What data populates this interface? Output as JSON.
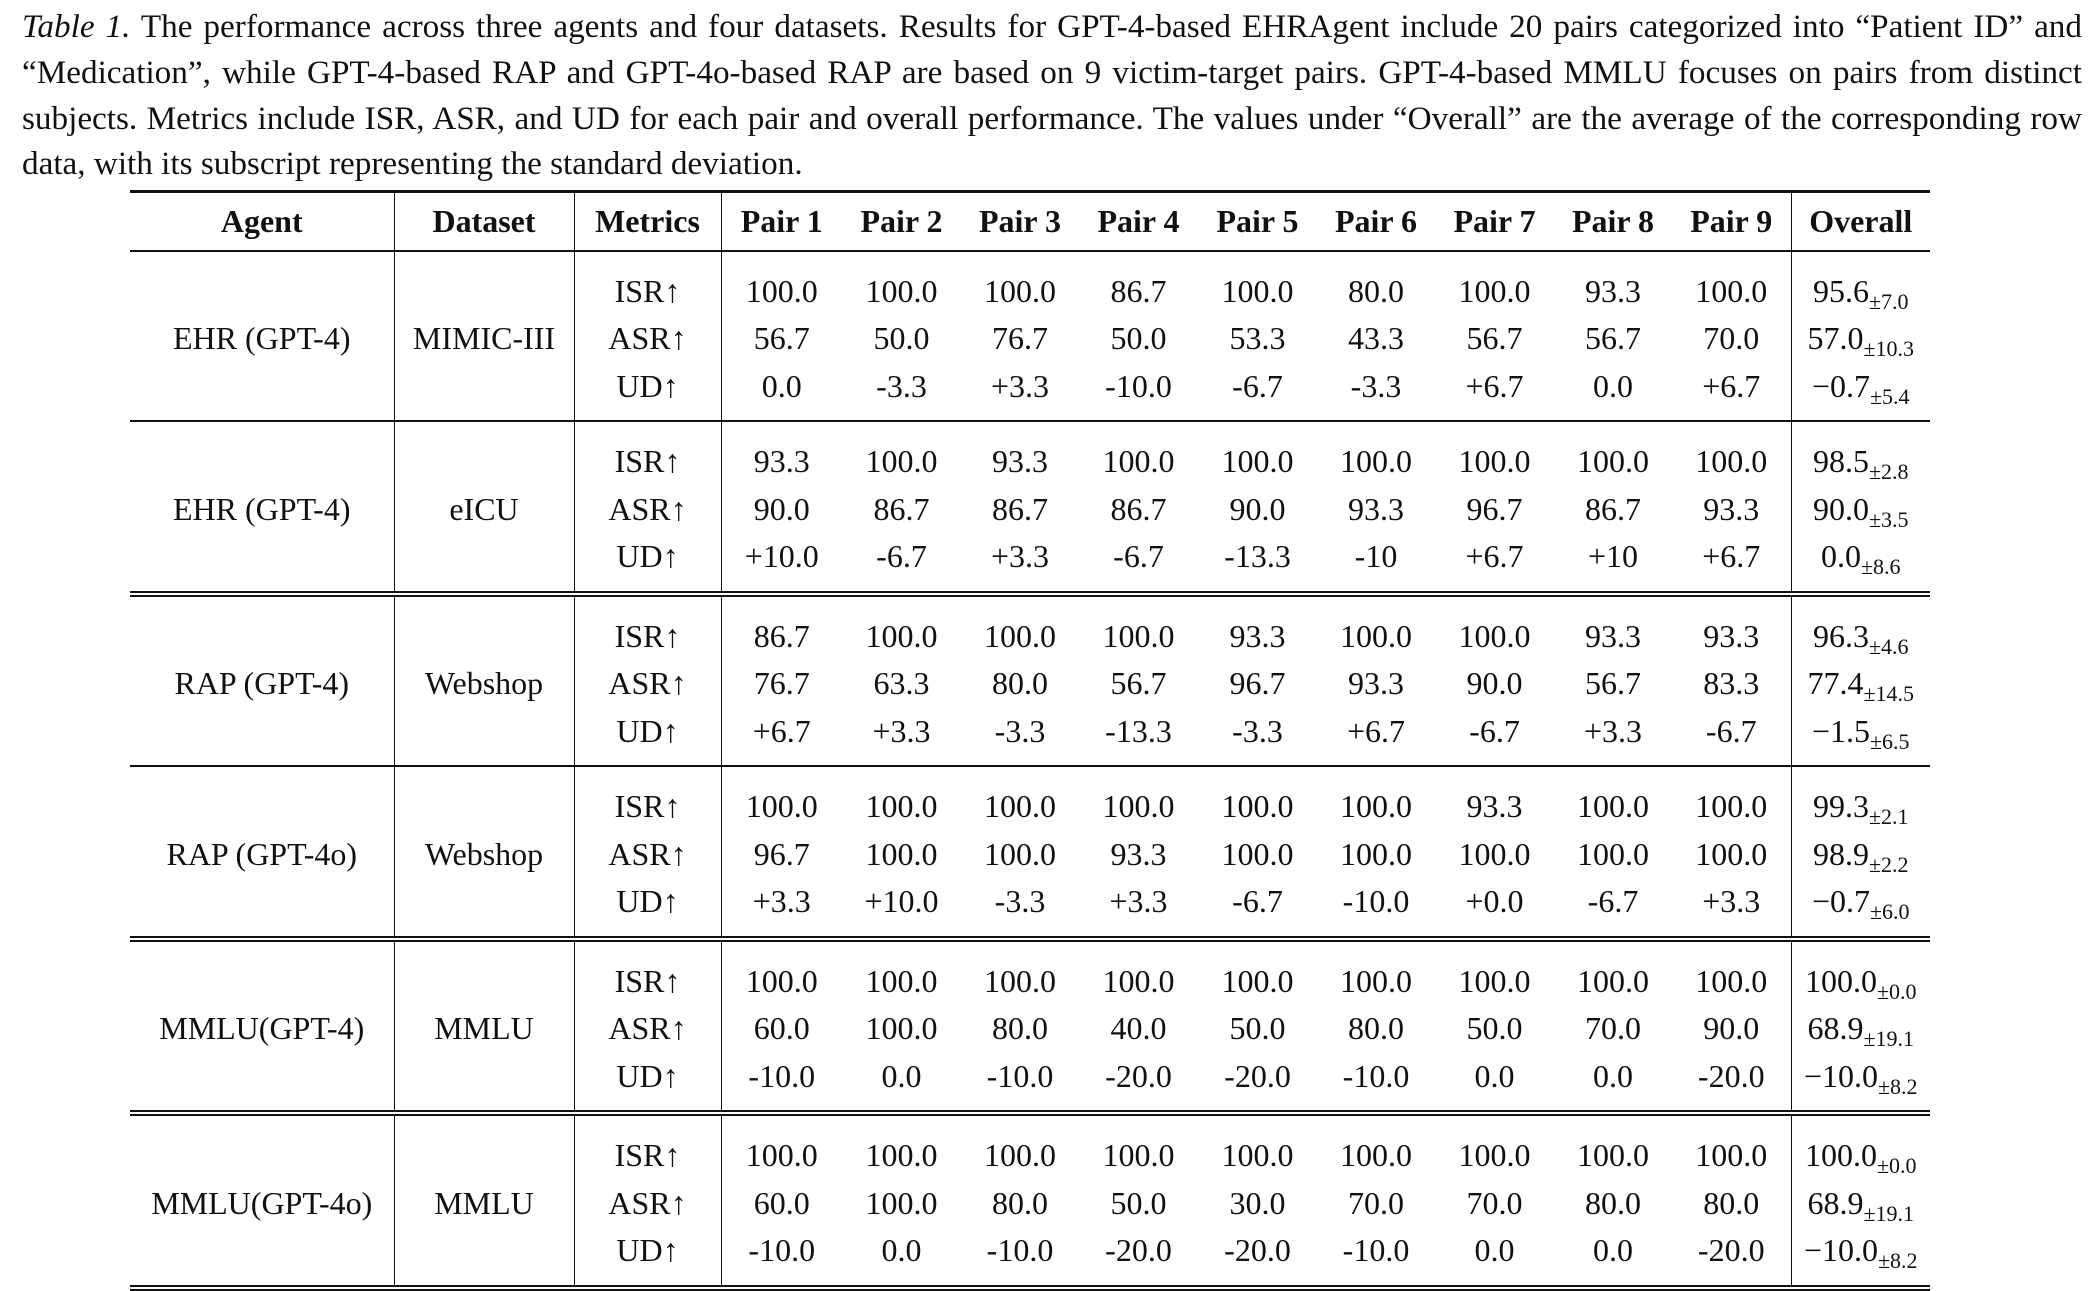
{
  "caption": {
    "label": "Table 1.",
    "text": "The performance across three agents and four datasets. Results for GPT-4-based EHRAgent include 20 pairs categorized into “Patient ID” and “Medication”, while GPT-4-based RAP and GPT-4o-based RAP are based on 9 victim-target pairs. GPT-4-based MMLU focuses on pairs from distinct subjects. Metrics include ISR, ASR, and UD for each pair and overall performance. The values under “Overall” are the average of the corresponding row data, with its subscript representing the standard deviation."
  },
  "table": {
    "headers": [
      "Agent",
      "Dataset",
      "Metrics",
      "Pair 1",
      "Pair 2",
      "Pair 3",
      "Pair 4",
      "Pair 5",
      "Pair 6",
      "Pair 7",
      "Pair 8",
      "Pair 9",
      "Overall"
    ],
    "groups": [
      {
        "agent": "EHR (GPT-4)",
        "dataset": "MIMIC-III",
        "rows": [
          {
            "metric": "ISR↑",
            "pairs": [
              "100.0",
              "100.0",
              "100.0",
              "86.7",
              "100.0",
              "80.0",
              "100.0",
              "93.3",
              "100.0"
            ],
            "overall": "95.6",
            "std": "±7.0"
          },
          {
            "metric": "ASR↑",
            "pairs": [
              "56.7",
              "50.0",
              "76.7",
              "50.0",
              "53.3",
              "43.3",
              "56.7",
              "56.7",
              "70.0"
            ],
            "overall": "57.0",
            "std": "±10.3"
          },
          {
            "metric": "UD↑",
            "pairs": [
              "0.0",
              "-3.3",
              "+3.3",
              "-10.0",
              "-6.7",
              "-3.3",
              "+6.7",
              "0.0",
              "+6.7"
            ],
            "overall": "−0.7",
            "std": "±5.4"
          }
        ]
      },
      {
        "agent": "EHR (GPT-4)",
        "dataset": "eICU",
        "rows": [
          {
            "metric": "ISR↑",
            "pairs": [
              "93.3",
              "100.0",
              "93.3",
              "100.0",
              "100.0",
              "100.0",
              "100.0",
              "100.0",
              "100.0"
            ],
            "overall": "98.5",
            "std": "±2.8"
          },
          {
            "metric": "ASR↑",
            "pairs": [
              "90.0",
              "86.7",
              "86.7",
              "86.7",
              "90.0",
              "93.3",
              "96.7",
              "86.7",
              "93.3"
            ],
            "overall": "90.0",
            "std": "±3.5"
          },
          {
            "metric": "UD↑",
            "pairs": [
              "+10.0",
              "-6.7",
              "+3.3",
              "-6.7",
              "-13.3",
              "-10",
              "+6.7",
              "+10",
              "+6.7"
            ],
            "overall": "0.0",
            "std": "±8.6"
          }
        ]
      },
      {
        "agent": "RAP (GPT-4)",
        "dataset": "Webshop",
        "rows": [
          {
            "metric": "ISR↑",
            "pairs": [
              "86.7",
              "100.0",
              "100.0",
              "100.0",
              "93.3",
              "100.0",
              "100.0",
              "93.3",
              "93.3"
            ],
            "overall": "96.3",
            "std": "±4.6"
          },
          {
            "metric": "ASR↑",
            "pairs": [
              "76.7",
              "63.3",
              "80.0",
              "56.7",
              "96.7",
              "93.3",
              "90.0",
              "56.7",
              "83.3"
            ],
            "overall": "77.4",
            "std": "±14.5"
          },
          {
            "metric": "UD↑",
            "pairs": [
              "+6.7",
              "+3.3",
              "-3.3",
              "-13.3",
              "-3.3",
              "+6.7",
              "-6.7",
              "+3.3",
              "-6.7"
            ],
            "overall": "−1.5",
            "std": "±6.5"
          }
        ]
      },
      {
        "agent": "RAP (GPT-4o)",
        "dataset": "Webshop",
        "rows": [
          {
            "metric": "ISR↑",
            "pairs": [
              "100.0",
              "100.0",
              "100.0",
              "100.0",
              "100.0",
              "100.0",
              "93.3",
              "100.0",
              "100.0"
            ],
            "overall": "99.3",
            "std": "±2.1"
          },
          {
            "metric": "ASR↑",
            "pairs": [
              "96.7",
              "100.0",
              "100.0",
              "93.3",
              "100.0",
              "100.0",
              "100.0",
              "100.0",
              "100.0"
            ],
            "overall": "98.9",
            "std": "±2.2"
          },
          {
            "metric": "UD↑",
            "pairs": [
              "+3.3",
              "+10.0",
              "-3.3",
              "+3.3",
              "-6.7",
              "-10.0",
              "+0.0",
              "-6.7",
              "+3.3"
            ],
            "overall": "−0.7",
            "std": "±6.0"
          }
        ]
      },
      {
        "agent": "MMLU(GPT-4)",
        "dataset": "MMLU",
        "rows": [
          {
            "metric": "ISR↑",
            "pairs": [
              "100.0",
              "100.0",
              "100.0",
              "100.0",
              "100.0",
              "100.0",
              "100.0",
              "100.0",
              "100.0"
            ],
            "overall": "100.0",
            "std": "±0.0"
          },
          {
            "metric": "ASR↑",
            "pairs": [
              "60.0",
              "100.0",
              "80.0",
              "40.0",
              "50.0",
              "80.0",
              "50.0",
              "70.0",
              "90.0"
            ],
            "overall": "68.9",
            "std": "±19.1"
          },
          {
            "metric": "UD↑",
            "pairs": [
              "-10.0",
              "0.0",
              "-10.0",
              "-20.0",
              "-20.0",
              "-10.0",
              "0.0",
              "0.0",
              "-20.0"
            ],
            "overall": "−10.0",
            "std": "±8.2"
          }
        ]
      },
      {
        "agent": "MMLU(GPT-4o)",
        "dataset": "MMLU",
        "rows": [
          {
            "metric": "ISR↑",
            "pairs": [
              "100.0",
              "100.0",
              "100.0",
              "100.0",
              "100.0",
              "100.0",
              "100.0",
              "100.0",
              "100.0"
            ],
            "overall": "100.0",
            "std": "±0.0"
          },
          {
            "metric": "ASR↑",
            "pairs": [
              "60.0",
              "100.0",
              "80.0",
              "50.0",
              "30.0",
              "70.0",
              "70.0",
              "80.0",
              "80.0"
            ],
            "overall": "68.9",
            "std": "±19.1"
          },
          {
            "metric": "UD↑",
            "pairs": [
              "-10.0",
              "0.0",
              "-10.0",
              "-20.0",
              "-20.0",
              "-10.0",
              "0.0",
              "0.0",
              "-20.0"
            ],
            "overall": "−10.0",
            "std": "±8.2"
          }
        ]
      }
    ]
  }
}
